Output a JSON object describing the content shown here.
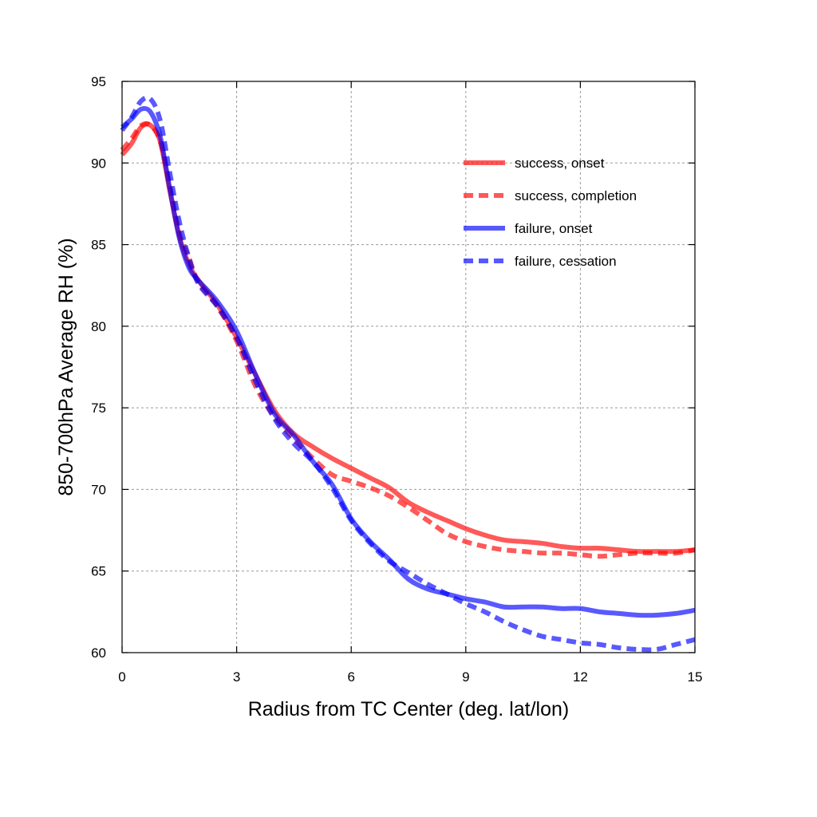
{
  "chart_data": {
    "type": "line",
    "title": "",
    "xlabel": "Radius from TC Center (deg. lat/lon)",
    "ylabel": "850-700hPa Average RH (%)",
    "xlim": [
      0,
      15
    ],
    "ylim": [
      60,
      95
    ],
    "xticks": [
      0,
      3,
      6,
      9,
      12,
      15
    ],
    "yticks": [
      60,
      65,
      70,
      75,
      80,
      85,
      90,
      95
    ],
    "grid": true,
    "legend_position": "upper-right",
    "series": [
      {
        "name": "success, onset",
        "color": "#ff0000",
        "dash": "solid",
        "x": [
          0,
          0.25,
          0.5,
          0.75,
          1,
          1.25,
          1.5,
          1.75,
          2,
          2.5,
          3,
          3.5,
          4,
          4.5,
          5,
          5.5,
          6,
          6.5,
          7,
          7.5,
          8,
          8.5,
          9,
          9.5,
          10,
          10.5,
          11,
          11.5,
          12,
          12.5,
          13,
          13.5,
          14,
          14.5,
          15
        ],
        "y": [
          90.5,
          91.2,
          92.2,
          92.3,
          91.3,
          88.3,
          85.5,
          83.8,
          82.8,
          81.3,
          79.3,
          77,
          74.8,
          73.4,
          72.6,
          71.9,
          71.3,
          70.7,
          70.1,
          69.2,
          68.6,
          68.1,
          67.6,
          67.2,
          66.9,
          66.8,
          66.7,
          66.5,
          66.4,
          66.4,
          66.3,
          66.2,
          66.2,
          66.2,
          66.3
        ]
      },
      {
        "name": "success, completion",
        "color": "#ff0000",
        "dash": "dashed",
        "x": [
          0,
          0.25,
          0.5,
          0.75,
          1,
          1.25,
          1.5,
          1.75,
          2,
          2.5,
          3,
          3.5,
          4,
          4.5,
          5,
          5.5,
          6,
          6.5,
          7,
          7.5,
          8,
          8.5,
          9,
          9.5,
          10,
          10.5,
          11,
          11.5,
          12,
          12.5,
          13,
          13.5,
          14,
          14.5,
          15
        ],
        "y": [
          90.8,
          91.5,
          92.3,
          92.3,
          91.3,
          88.6,
          85.7,
          84.2,
          82.7,
          81.2,
          79.1,
          76.3,
          74.4,
          73.1,
          71.9,
          70.9,
          70.5,
          70.1,
          69.6,
          68.9,
          68.1,
          67.3,
          66.8,
          66.5,
          66.3,
          66.2,
          66.1,
          66.1,
          66,
          65.9,
          66,
          66.1,
          66.1,
          66.1,
          66.3
        ]
      },
      {
        "name": "failure, onset",
        "color": "#0000ff",
        "dash": "solid",
        "x": [
          0,
          0.25,
          0.5,
          0.75,
          1,
          1.25,
          1.5,
          1.75,
          2,
          2.5,
          3,
          3.5,
          4,
          4.5,
          5,
          5.5,
          6,
          6.5,
          7,
          7.5,
          8,
          8.5,
          9,
          9.5,
          10,
          10.5,
          11,
          11.5,
          12,
          12.5,
          13,
          13.5,
          14,
          14.5,
          15
        ],
        "y": [
          92.2,
          92.7,
          93.3,
          93.1,
          91.6,
          88.4,
          85.4,
          83.6,
          82.8,
          81.5,
          79.7,
          77,
          74.6,
          73.3,
          71.7,
          70.3,
          68.2,
          66.8,
          65.7,
          64.5,
          63.9,
          63.6,
          63.3,
          63.1,
          62.8,
          62.8,
          62.8,
          62.7,
          62.7,
          62.5,
          62.4,
          62.3,
          62.3,
          62.4,
          62.6
        ]
      },
      {
        "name": "failure, cessation",
        "color": "#0000ff",
        "dash": "dashed",
        "x": [
          0,
          0.25,
          0.5,
          0.75,
          1,
          1.25,
          1.5,
          1.75,
          2,
          2.5,
          3,
          3.5,
          4,
          4.5,
          5,
          5.5,
          6,
          6.5,
          7,
          7.5,
          8,
          8.5,
          9,
          9.5,
          10,
          10.5,
          11,
          11.5,
          12,
          12.5,
          13,
          13.5,
          14,
          14.5,
          15
        ],
        "y": [
          92,
          92.8,
          93.8,
          93.9,
          92.6,
          89.4,
          86.4,
          84.2,
          82.6,
          81.2,
          79.3,
          76.6,
          74.3,
          72.8,
          71.7,
          70.1,
          68.1,
          66.7,
          65.6,
          64.9,
          64.2,
          63.6,
          63,
          62.5,
          61.9,
          61.4,
          61,
          60.8,
          60.6,
          60.5,
          60.3,
          60.2,
          60.2,
          60.5,
          60.8
        ]
      }
    ]
  }
}
